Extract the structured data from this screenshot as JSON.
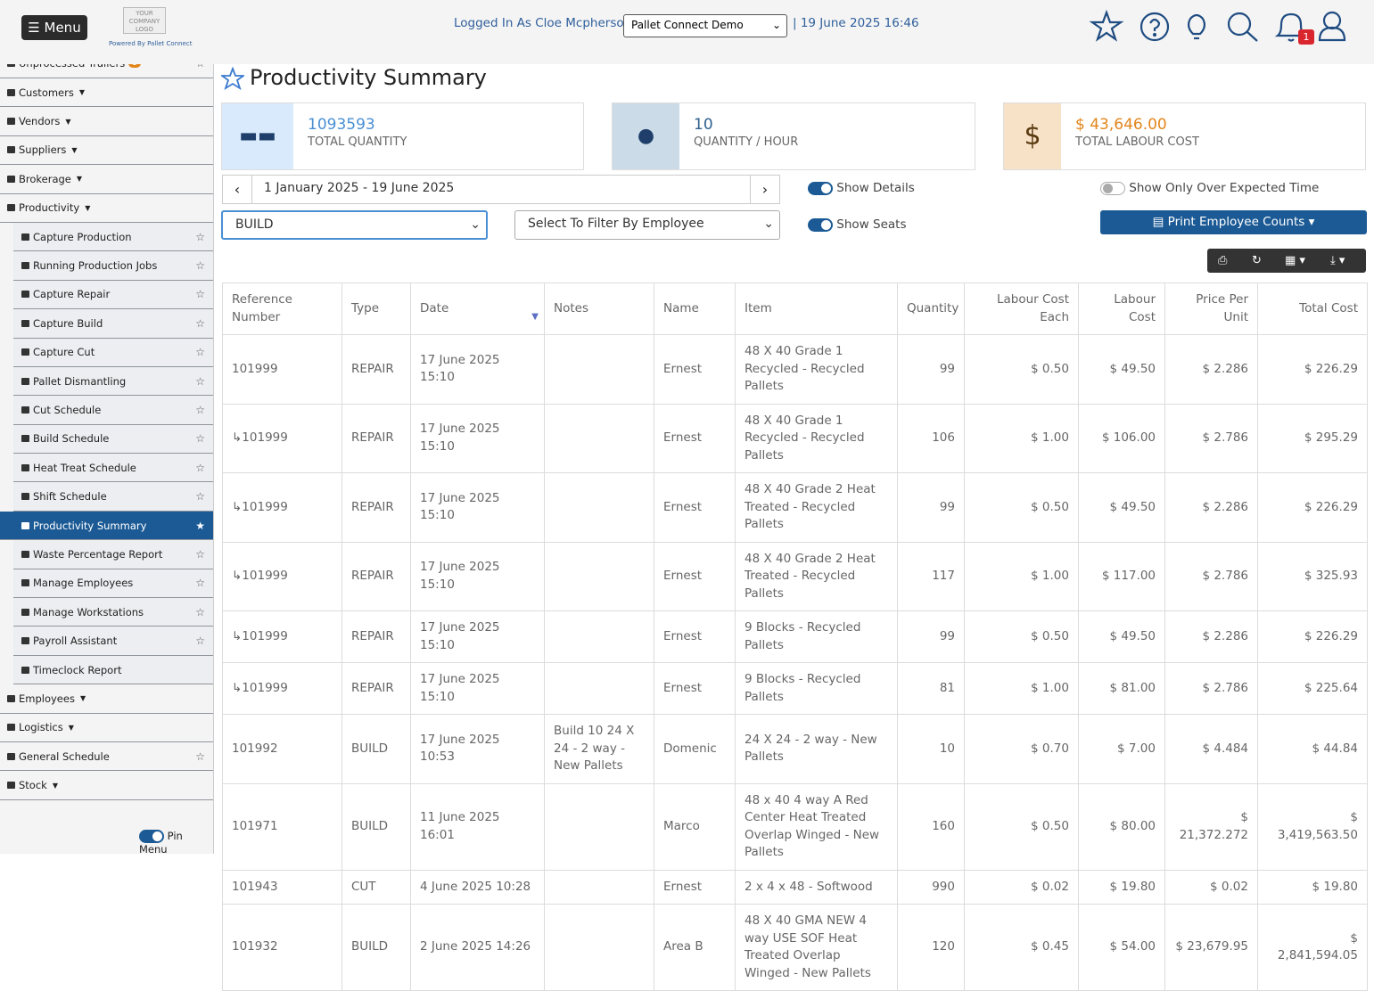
{
  "header": {
    "menu": "Menu",
    "logo": "YOUR COMPANY LOGO",
    "powered_by": "Powered By Pallet Connect",
    "logged_in": "Logged In As Cloe Mcpherson |",
    "company": "Pallet Connect Demo",
    "datetime": "| 19 June 2025 16:46",
    "notifications": "1"
  },
  "sidebar": {
    "items": [
      {
        "label": "Unprocessed Trailers",
        "badge": "3",
        "star": true
      },
      {
        "label": "Customers",
        "dropdown": true
      },
      {
        "label": "Vendors",
        "dropdown": true
      },
      {
        "label": "Suppliers",
        "dropdown": true
      },
      {
        "label": "Brokerage",
        "dropdown": true
      },
      {
        "label": "Productivity",
        "dropdown": true
      },
      {
        "label": "Capture Production",
        "sub": true,
        "star": true
      },
      {
        "label": "Running Production Jobs",
        "sub": true,
        "star": true
      },
      {
        "label": "Capture Repair",
        "sub": true,
        "star": true
      },
      {
        "label": "Capture Build",
        "sub": true,
        "star": true
      },
      {
        "label": "Capture Cut",
        "sub": true,
        "star": true
      },
      {
        "label": "Pallet Dismantling",
        "sub": true,
        "star": true
      },
      {
        "label": "Cut Schedule",
        "sub": true,
        "star": true
      },
      {
        "label": "Build Schedule",
        "sub": true,
        "star": true
      },
      {
        "label": "Heat Treat Schedule",
        "sub": true,
        "star": true
      },
      {
        "label": "Shift Schedule",
        "sub": true,
        "star": true
      },
      {
        "label": "Productivity Summary",
        "sub": true,
        "star": true,
        "active": true
      },
      {
        "label": "Waste Percentage Report",
        "sub": true,
        "star": true
      },
      {
        "label": "Manage Employees",
        "sub": true,
        "star": true
      },
      {
        "label": "Manage Workstations",
        "sub": true,
        "star": true
      },
      {
        "label": "Payroll Assistant",
        "sub": true,
        "star": true
      },
      {
        "label": "Timeclock Report",
        "sub": true
      },
      {
        "label": "Employees",
        "dropdown": true
      },
      {
        "label": "Logistics",
        "dropdown": true
      },
      {
        "label": "General Schedule",
        "star": true
      },
      {
        "label": "Stock",
        "dropdown": true
      }
    ],
    "pin_menu": "Pin Menu"
  },
  "page": {
    "title": "Productivity Summary",
    "cards": [
      {
        "value": "1093593",
        "label": "TOTAL QUANTITY",
        "color": "#4a8fd4",
        "icon_bg": "#d8eafb"
      },
      {
        "value": "10",
        "label": "QUANTITY / HOUR",
        "color": "#2f5f8c",
        "icon_bg": "#cbdbe8"
      },
      {
        "value": "$ 43,646.00",
        "label": "TOTAL LABOUR COST",
        "color": "#e2861c",
        "icon_bg": "#f7e2c8"
      }
    ],
    "date_range": "1 January 2025 - 19 June 2025",
    "type_filter": "BUILD",
    "employee_filter": "Select To Filter By Employee",
    "toggles": [
      {
        "label": "Show Details",
        "on": true
      },
      {
        "label": "Show Seats",
        "on": true
      },
      {
        "label": "Show Only Over Expected Time",
        "on": false
      }
    ],
    "print_button": "Print Employee Counts"
  },
  "table": {
    "headers": [
      "Reference Number",
      "Type",
      "Date",
      "Notes",
      "Name",
      "Item",
      "Quantity",
      "Labour Cost Each",
      "Labour Cost",
      "Price Per Unit",
      "Total Cost"
    ],
    "rows": [
      [
        "101999",
        "REPAIR",
        "17 June 2025 15:10",
        "",
        "Ernest",
        "48 X 40 Grade 1 Recycled - Recycled Pallets",
        "99",
        "$ 0.50",
        "$ 49.50",
        "$ 2.286",
        "$ 226.29"
      ],
      [
        "↳101999",
        "REPAIR",
        "17 June 2025 15:10",
        "",
        "Ernest",
        "48 X 40 Grade 1 Recycled - Recycled Pallets",
        "106",
        "$ 1.00",
        "$ 106.00",
        "$ 2.786",
        "$ 295.29"
      ],
      [
        "↳101999",
        "REPAIR",
        "17 June 2025 15:10",
        "",
        "Ernest",
        "48 X 40 Grade 2 Heat Treated - Recycled Pallets",
        "99",
        "$ 0.50",
        "$ 49.50",
        "$ 2.286",
        "$ 226.29"
      ],
      [
        "↳101999",
        "REPAIR",
        "17 June 2025 15:10",
        "",
        "Ernest",
        "48 X 40 Grade 2 Heat Treated - Recycled Pallets",
        "117",
        "$ 1.00",
        "$ 117.00",
        "$ 2.786",
        "$ 325.93"
      ],
      [
        "↳101999",
        "REPAIR",
        "17 June 2025 15:10",
        "",
        "Ernest",
        "9 Blocks - Recycled Pallets",
        "99",
        "$ 0.50",
        "$ 49.50",
        "$ 2.286",
        "$ 226.29"
      ],
      [
        "↳101999",
        "REPAIR",
        "17 June 2025 15:10",
        "",
        "Ernest",
        "9 Blocks - Recycled Pallets",
        "81",
        "$ 1.00",
        "$ 81.00",
        "$ 2.786",
        "$ 225.64"
      ],
      [
        "101992",
        "BUILD",
        "17 June 2025 10:53",
        "Build 10 24 X 24 - 2 way - New Pallets",
        "Domenic",
        "24 X 24 - 2 way - New Pallets",
        "10",
        "$ 0.70",
        "$ 7.00",
        "$ 4.484",
        "$ 44.84"
      ],
      [
        "101971",
        "BUILD",
        "11 June 2025 16:01",
        "",
        "Marco",
        "48 x 40 4 way A Red Center Heat Treated Overlap Winged - New Pallets",
        "160",
        "$ 0.50",
        "$ 80.00",
        "$ 21,372.272",
        "$ 3,419,563.50"
      ],
      [
        "101943",
        "CUT",
        "4 June 2025 10:28",
        "",
        "Ernest",
        "2 x 4 x 48 - Softwood",
        "990",
        "$ 0.02",
        "$ 19.80",
        "$ 0.02",
        "$ 19.80"
      ],
      [
        "101932",
        "BUILD",
        "2 June 2025 14:26",
        "",
        "Area B",
        "48 X 40 GMA NEW 4 way USE SOF Heat Treated Overlap Winged - New Pallets",
        "120",
        "$ 0.45",
        "$ 54.00",
        "$ 23,679.95",
        "$ 2,841,594.05"
      ]
    ]
  }
}
